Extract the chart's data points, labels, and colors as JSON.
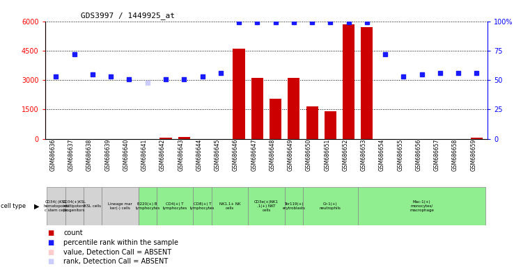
{
  "title": "GDS3997 / 1449925_at",
  "gsm_labels": [
    "GSM686636",
    "GSM686637",
    "GSM686638",
    "GSM686639",
    "GSM686640",
    "GSM686641",
    "GSM686642",
    "GSM686643",
    "GSM686644",
    "GSM686645",
    "GSM686646",
    "GSM686647",
    "GSM686648",
    "GSM686649",
    "GSM686650",
    "GSM686651",
    "GSM686652",
    "GSM686653",
    "GSM686654",
    "GSM686655",
    "GSM686656",
    "GSM686657",
    "GSM686658",
    "GSM686659"
  ],
  "count_values": [
    0,
    0,
    0,
    0,
    0,
    0,
    60,
    90,
    0,
    0,
    4600,
    3100,
    2050,
    3100,
    1650,
    1400,
    5850,
    5700,
    0,
    0,
    0,
    0,
    0,
    60
  ],
  "percentile_values": [
    53,
    72,
    55,
    53,
    51,
    48,
    51,
    51,
    53,
    56,
    99,
    99,
    99,
    99,
    99,
    99,
    99,
    99,
    72,
    53,
    55,
    56,
    56,
    56
  ],
  "absent_count": [
    true,
    true,
    true,
    true,
    true,
    true,
    false,
    false,
    true,
    true,
    false,
    false,
    false,
    false,
    false,
    false,
    false,
    false,
    true,
    true,
    true,
    true,
    true,
    false
  ],
  "absent_percentile": [
    false,
    false,
    false,
    false,
    false,
    true,
    false,
    false,
    false,
    false,
    false,
    false,
    false,
    false,
    false,
    false,
    false,
    false,
    false,
    false,
    false,
    false,
    false,
    false
  ],
  "cell_type_groups": [
    {
      "label": "CD34(-)KSL\nhematopoieti\nc stem cells",
      "start": 0,
      "end": 0,
      "color": "#d3d3d3"
    },
    {
      "label": "CD34(+)KSL\nmultipotent\nprogenitors",
      "start": 1,
      "end": 1,
      "color": "#d3d3d3"
    },
    {
      "label": "KSL cells",
      "start": 2,
      "end": 2,
      "color": "#d3d3d3"
    },
    {
      "label": "Lineage mar\nker(-) cells",
      "start": 3,
      "end": 4,
      "color": "#d3d3d3"
    },
    {
      "label": "B220(+) B\nlymphocytes",
      "start": 5,
      "end": 5,
      "color": "#90ee90"
    },
    {
      "label": "CD4(+) T\nlymphocytes",
      "start": 6,
      "end": 7,
      "color": "#90ee90"
    },
    {
      "label": "CD8(+) T\nlymphocytes",
      "start": 8,
      "end": 8,
      "color": "#90ee90"
    },
    {
      "label": "NK1.1+ NK\ncells",
      "start": 9,
      "end": 10,
      "color": "#90ee90"
    },
    {
      "label": "CD3e(+)NK1\n.1(+) NKT\ncells",
      "start": 11,
      "end": 12,
      "color": "#90ee90"
    },
    {
      "label": "Ter119(+)\nerytroblasts",
      "start": 13,
      "end": 13,
      "color": "#90ee90"
    },
    {
      "label": "Gr-1(+)\nneutrophils",
      "start": 14,
      "end": 16,
      "color": "#90ee90"
    },
    {
      "label": "Mac-1(+)\nmonocytes/\nmacrophage",
      "start": 17,
      "end": 23,
      "color": "#90ee90"
    }
  ],
  "ylim_left": [
    0,
    6000
  ],
  "ylim_right": [
    0,
    100
  ],
  "yticks_left": [
    0,
    1500,
    3000,
    4500,
    6000
  ],
  "ytick_labels_left": [
    "0",
    "1500",
    "3000",
    "4500",
    "6000"
  ],
  "yticks_right": [
    0,
    25,
    50,
    75,
    100
  ],
  "ytick_labels_right": [
    "0",
    "25",
    "50",
    "75",
    "100%"
  ],
  "bar_color": "#cc0000",
  "dot_color": "#1a1aff",
  "absent_bar_color": "#ffcccc",
  "absent_dot_color": "#ccccff",
  "legend_items": [
    {
      "label": "count",
      "color": "#cc0000"
    },
    {
      "label": "percentile rank within the sample",
      "color": "#1a1aff"
    },
    {
      "label": "value, Detection Call = ABSENT",
      "color": "#ffcccc"
    },
    {
      "label": "rank, Detection Call = ABSENT",
      "color": "#ccccff"
    }
  ],
  "fig_width": 7.61,
  "fig_height": 3.84,
  "fig_dpi": 100
}
